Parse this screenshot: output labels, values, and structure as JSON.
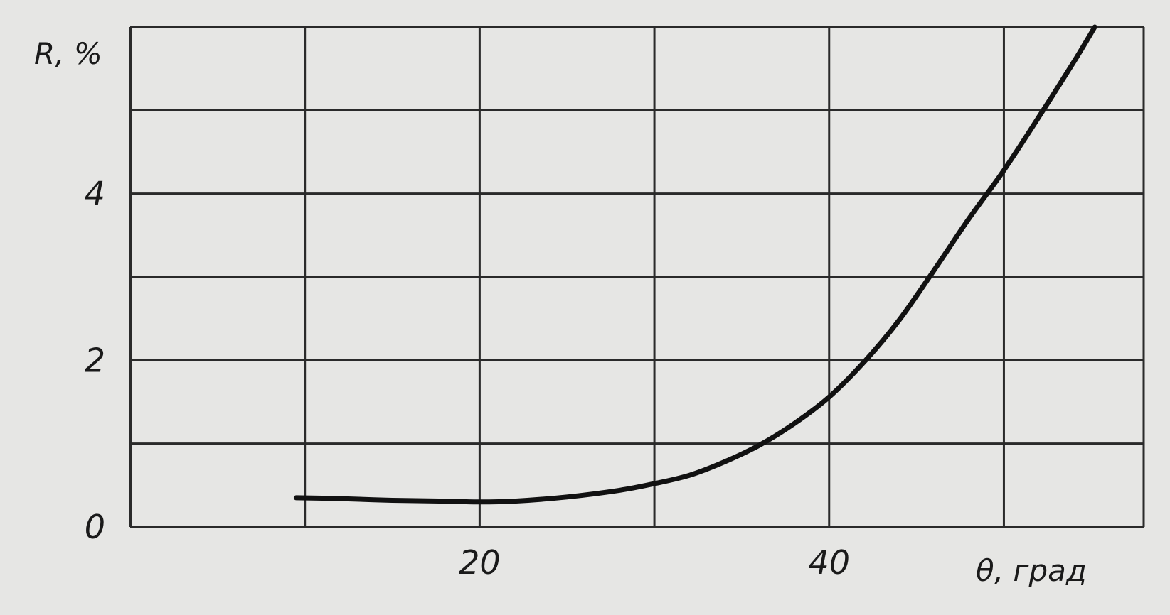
{
  "chart_data": {
    "type": "line",
    "title": "",
    "xlabel": "θ, град",
    "ylabel": "R, %",
    "xlim": [
      0,
      58
    ],
    "ylim": [
      0,
      6
    ],
    "x_ticks": [
      20,
      40
    ],
    "x_tick_labels": [
      "20",
      "40"
    ],
    "y_ticks": [
      0,
      2,
      4
    ],
    "y_tick_labels": [
      "0",
      "2",
      "4"
    ],
    "grid": true,
    "legend": "none",
    "series": [
      {
        "x": [
          9.5,
          12,
          15,
          18,
          20,
          22,
          25,
          28,
          30,
          32,
          34,
          36,
          38,
          40,
          42,
          44,
          46,
          48,
          50,
          52,
          54,
          55.2
        ],
        "y": [
          0.35,
          0.34,
          0.32,
          0.31,
          0.3,
          0.31,
          0.36,
          0.44,
          0.52,
          0.62,
          0.78,
          0.98,
          1.24,
          1.56,
          1.98,
          2.48,
          3.08,
          3.7,
          4.28,
          4.92,
          5.58,
          6.0
        ]
      }
    ],
    "colors": {
      "background": "#e6e6e4",
      "line": "#111111",
      "grid": "#2a2a2a"
    }
  }
}
